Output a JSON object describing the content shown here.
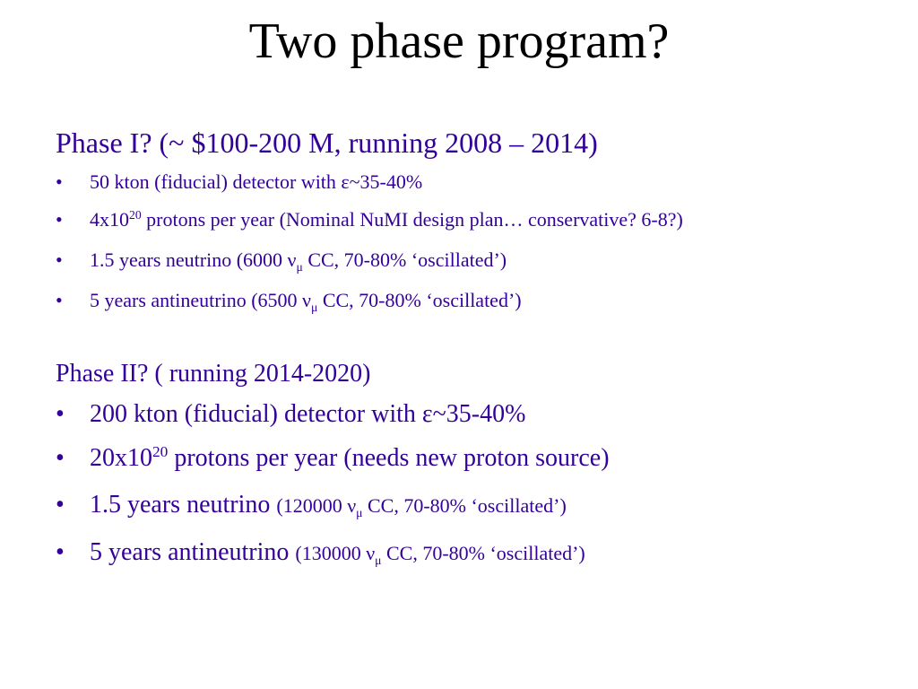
{
  "slide": {
    "title": "Two phase program?",
    "phase1": {
      "heading": "Phase I? (~ $100-200 M, running 2008 – 2014)",
      "bullet_char": "•",
      "items": [
        {
          "text": "50 kton (fiducial) detector with ε~35-40%"
        },
        {
          "pre": "4x10",
          "sup": "20",
          "post": " protons per year (Nominal NuMI design plan… conservative? 6-8?)"
        },
        {
          "pre": "1.5 years neutrino (6000 ν",
          "sub": "μ",
          "post": " CC, 70-80% ‘oscillated’)"
        },
        {
          "pre": "5 years antineutrino (6500 ν",
          "sub": "μ",
          "post": " CC, 70-80% ‘oscillated’)"
        }
      ]
    },
    "phase2": {
      "heading": "Phase II? ( running 2014-2020)",
      "bullet_char": "•",
      "items": [
        {
          "text": "200 kton (fiducial) detector with ε~35-40%"
        },
        {
          "pre": "20x10",
          "sup": "20",
          "post": " protons per year (needs new proton source)"
        },
        {
          "main": "1.5 years neutrino ",
          "small_pre": "(120000 ν",
          "sub": "μ",
          "small_post": " CC, 70-80% ‘oscillated’)"
        },
        {
          "main": "5 years antineutrino ",
          "small_pre": "(130000 ν",
          "sub": "μ",
          "small_post": " CC, 70-80% ‘oscillated’)"
        }
      ]
    }
  },
  "colors": {
    "title": "#000000",
    "body_text": "#330099",
    "background": "#ffffff"
  }
}
